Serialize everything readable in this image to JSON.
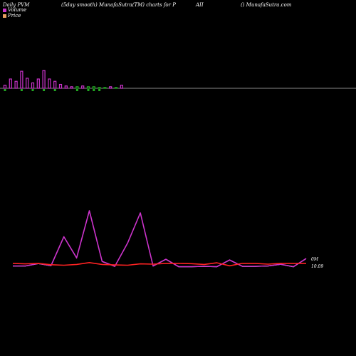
{
  "header": {
    "t1": "Daily PVM",
    "t2": "(5day smooth) MunafaSutra(TM) charts for P",
    "t3": "AII",
    "t4": "() MunafaSutra.com"
  },
  "legend": {
    "volume": "Volume",
    "price": "Price",
    "volume_color": "#cc33cc",
    "price_color": "#e8a060"
  },
  "chart_data": [
    {
      "type": "bar",
      "title": "Volume",
      "values": [
        4,
        12,
        9,
        22,
        13,
        7,
        12,
        23,
        12,
        9,
        5,
        3,
        2,
        2,
        3,
        2,
        2,
        1,
        1,
        2,
        1,
        4
      ],
      "colors": [
        "#cc33cc",
        "#cc33cc",
        "#cc33cc",
        "#cc33cc",
        "#cc33cc",
        "#cc33cc",
        "#cc33cc",
        "#cc33cc",
        "#cc33cc",
        "#cc33cc",
        "#cc33cc",
        "#cc33cc",
        "#cc33cc",
        "#22aa22",
        "#cc33cc",
        "#22aa22",
        "#22aa22",
        "#22aa22",
        "#22aa22",
        "#cc33cc",
        "#22aa22",
        "#cc33cc"
      ],
      "down": [
        true,
        false,
        false,
        true,
        false,
        true,
        false,
        true,
        false,
        true,
        false,
        false,
        false,
        true,
        false,
        true,
        true,
        true,
        false,
        false,
        false,
        false
      ]
    },
    {
      "type": "line",
      "series": [
        {
          "color": "#cc33cc",
          "values": [
            0.3,
            0.3,
            1.0,
            0.4,
            8.6,
            2.6,
            16.0,
            1.6,
            0.2,
            6.8,
            15.4,
            0.3,
            2.2,
            0.1,
            0.1,
            0.2,
            0.1,
            2.0,
            0.2,
            0.2,
            0.3,
            0.8,
            0.1,
            2.4
          ]
        },
        {
          "color": "#ff2222",
          "values": [
            10.09,
            10.07,
            10.09,
            10.04,
            10.02,
            10.05,
            10.12,
            10.05,
            10.03,
            10.02,
            10.07,
            10.06,
            10.09,
            10.09,
            10.08,
            10.05,
            10.11,
            10.0,
            10.09,
            10.09,
            10.06,
            10.09,
            10.09,
            10.09
          ]
        }
      ],
      "labels": {
        "volume_axis": "0M",
        "price_axis": "10.09"
      }
    }
  ]
}
